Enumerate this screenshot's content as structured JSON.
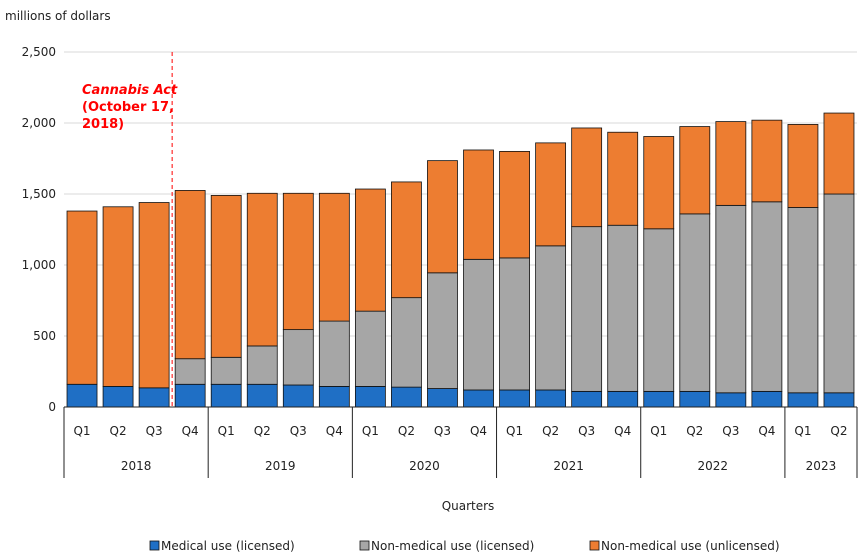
{
  "chart_data": {
    "type": "bar",
    "stacked": true,
    "unit_label": "millions of dollars",
    "xlabel": "Quarters",
    "ylabel": "",
    "ylim": [
      0,
      2500
    ],
    "yticks": [
      0,
      500,
      1000,
      1500,
      2000,
      2500
    ],
    "ytick_labels": [
      "0",
      "500",
      "1,000",
      "1,500",
      "2,000",
      "2,500"
    ],
    "grid": true,
    "legend_position": "bottom",
    "categories": [
      "Q1",
      "Q2",
      "Q3",
      "Q4",
      "Q1",
      "Q2",
      "Q3",
      "Q4",
      "Q1",
      "Q2",
      "Q3",
      "Q4",
      "Q1",
      "Q2",
      "Q3",
      "Q4",
      "Q1",
      "Q2",
      "Q3",
      "Q4",
      "Q1",
      "Q2"
    ],
    "years": [
      {
        "label": "2018",
        "count": 4
      },
      {
        "label": "2019",
        "count": 4
      },
      {
        "label": "2020",
        "count": 4
      },
      {
        "label": "2021",
        "count": 4
      },
      {
        "label": "2022",
        "count": 4
      },
      {
        "label": "2023",
        "count": 2
      }
    ],
    "series": [
      {
        "name": "Medical use (licensed)",
        "color": "#1f6fc5",
        "values": [
          160,
          145,
          135,
          160,
          160,
          160,
          155,
          145,
          145,
          140,
          130,
          120,
          120,
          120,
          110,
          110,
          110,
          110,
          100,
          110,
          100,
          100
        ]
      },
      {
        "name": "Non-medical use (licensed)",
        "color": "#a6a6a6",
        "values": [
          0,
          0,
          0,
          180,
          190,
          270,
          390,
          460,
          530,
          630,
          815,
          920,
          930,
          1015,
          1160,
          1170,
          1145,
          1250,
          1320,
          1335,
          1305,
          1400
        ]
      },
      {
        "name": "Non-medical use (unlicensed)",
        "color": "#ed7d31",
        "values": [
          1220,
          1265,
          1305,
          1185,
          1140,
          1075,
          960,
          900,
          860,
          815,
          790,
          770,
          750,
          725,
          695,
          655,
          650,
          615,
          590,
          575,
          585,
          570
        ]
      }
    ],
    "annotation": {
      "text_lines": [
        "Cannabis Act",
        "(October 17,",
        "2018)"
      ],
      "color": "#ff0000",
      "between_category": 3
    }
  }
}
